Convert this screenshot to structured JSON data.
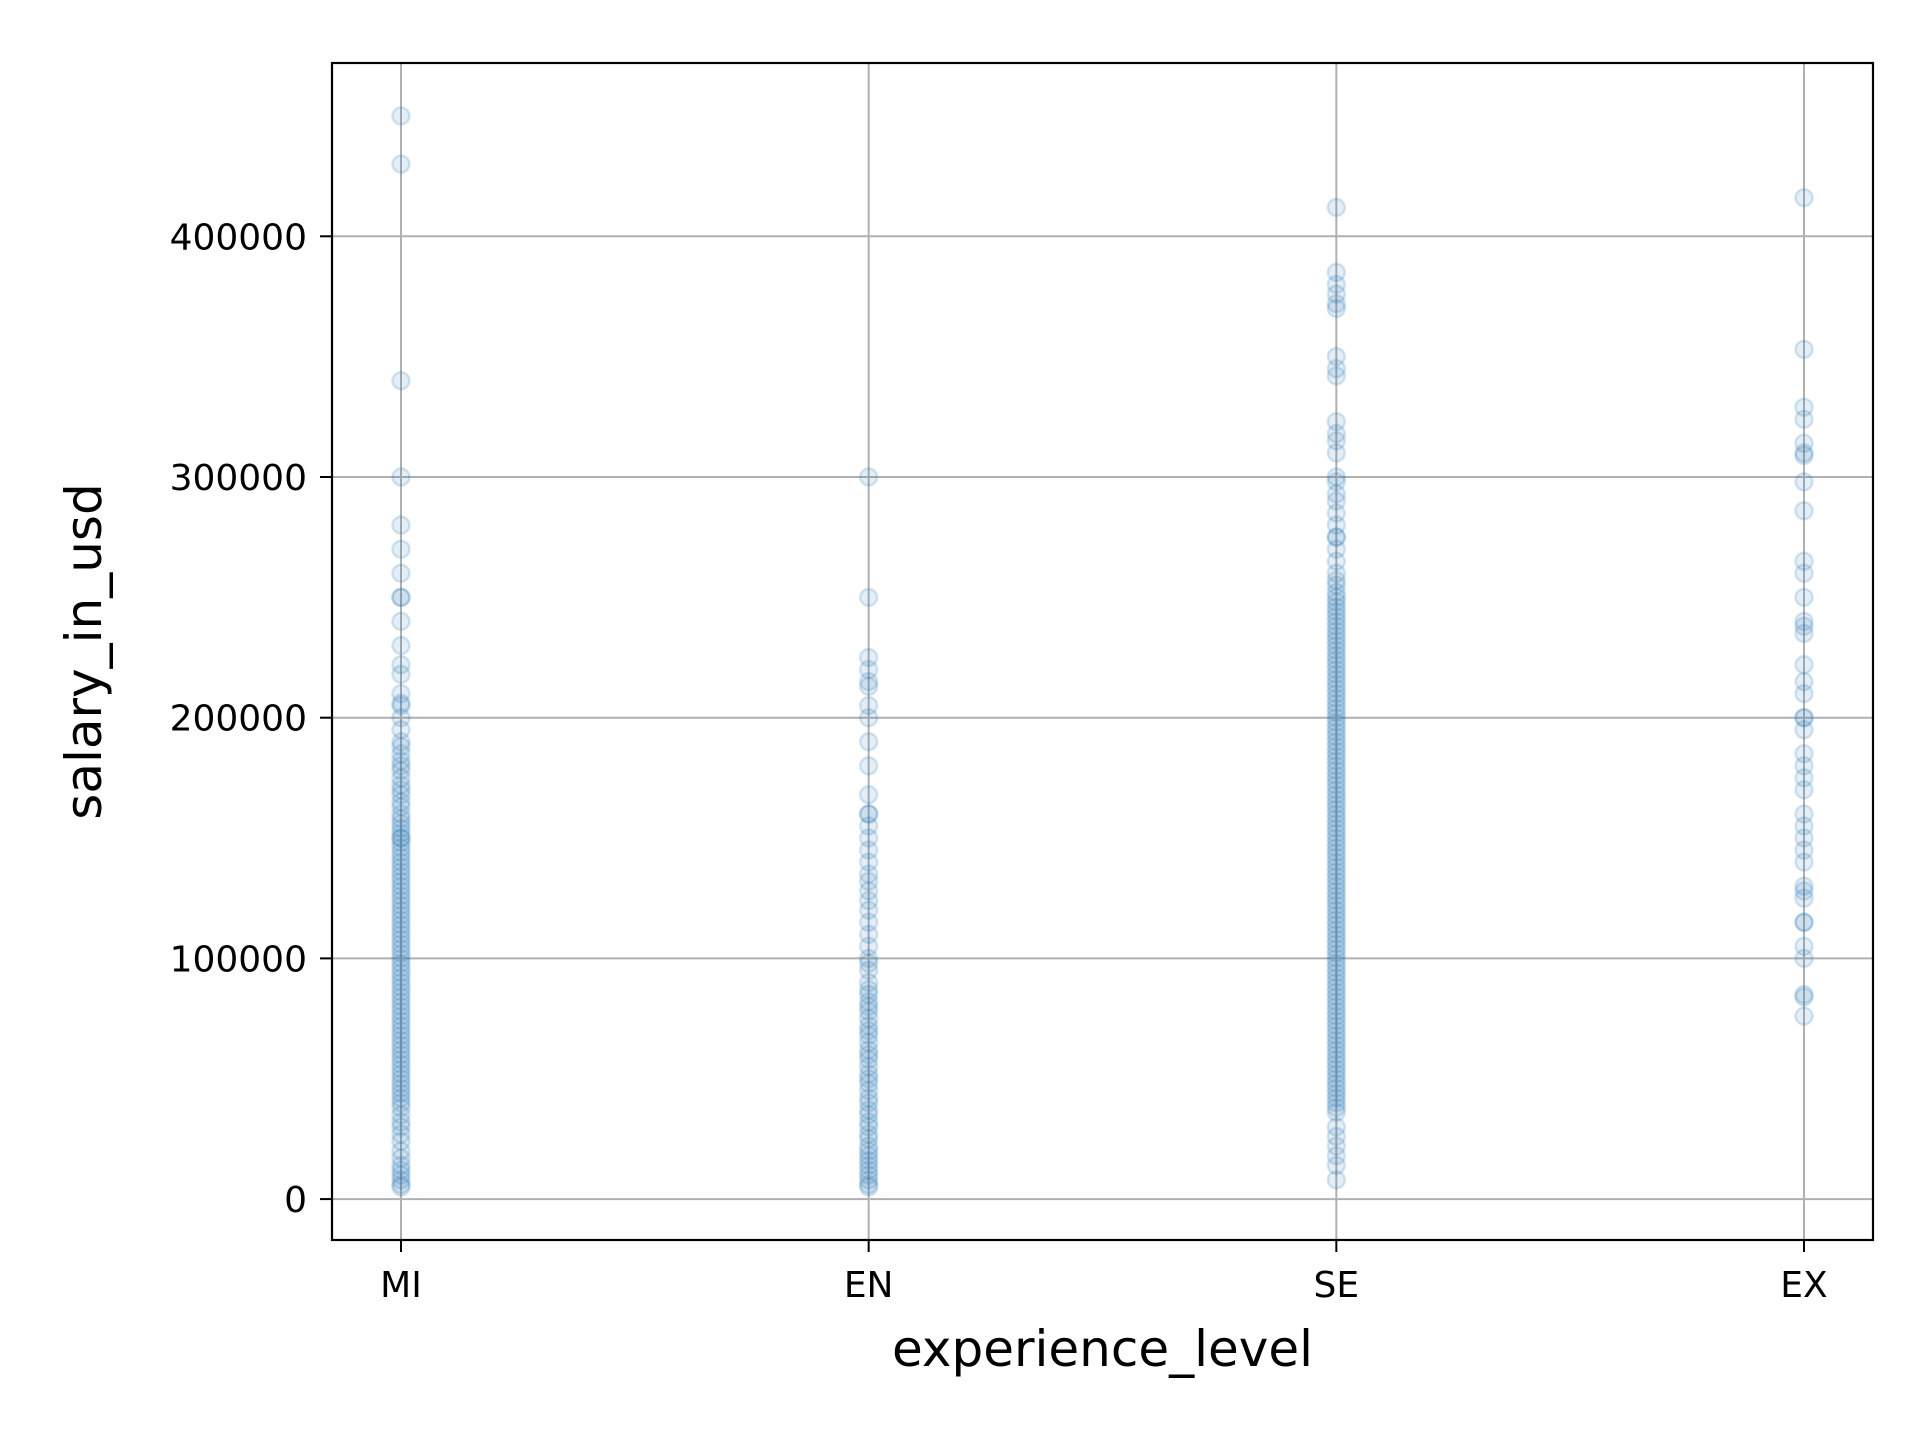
{
  "chart_data": {
    "type": "scatter",
    "xlabel": "experience_level",
    "ylabel": "salary_in_usd",
    "categories": [
      "MI",
      "EN",
      "SE",
      "EX"
    ],
    "ylim": [
      -17000,
      472000
    ],
    "yticks": [
      0,
      100000,
      200000,
      300000,
      400000
    ],
    "ytick_labels": [
      "0",
      "100000",
      "200000",
      "300000",
      "400000"
    ],
    "grid": true,
    "marker_color": "#1f77b4",
    "marker_alpha": 0.12,
    "series": [
      {
        "values": {
          "MI": [
            450000,
            430000,
            340000,
            300000,
            280000,
            270000,
            260000,
            250000,
            250000,
            240000,
            230000,
            222000,
            218000,
            210000,
            206000,
            205000,
            200000,
            195000,
            190000,
            188000,
            185000,
            182000,
            180000,
            178000,
            175000,
            172000,
            170000,
            168000,
            165000,
            163000,
            160000,
            158000,
            156000,
            154000,
            152000,
            150000,
            150000,
            148000,
            146000,
            144000,
            142000,
            140000,
            138000,
            136000,
            134000,
            132000,
            130000,
            128000,
            126000,
            124000,
            122000,
            120000,
            118000,
            116000,
            114000,
            112000,
            110000,
            108000,
            106000,
            104000,
            102000,
            100000,
            98000,
            96000,
            94000,
            92000,
            90000,
            88000,
            86000,
            84000,
            82000,
            80000,
            78000,
            76000,
            74000,
            72000,
            70000,
            68000,
            66000,
            64000,
            62000,
            60000,
            58000,
            56000,
            54000,
            52000,
            50000,
            48000,
            46000,
            44000,
            42000,
            40000,
            38000,
            35000,
            32000,
            30000,
            27000,
            24000,
            20000,
            17000,
            14000,
            12000,
            10000,
            8000,
            6000,
            5000
          ],
          "EN": [
            300000,
            250000,
            225000,
            220000,
            215000,
            213000,
            205000,
            200000,
            190000,
            180000,
            168000,
            160000,
            160000,
            155000,
            150000,
            145000,
            140000,
            135000,
            132000,
            128000,
            124000,
            120000,
            115000,
            110000,
            105000,
            100000,
            98000,
            95000,
            90000,
            87000,
            85000,
            82000,
            80000,
            78000,
            75000,
            72000,
            70000,
            68000,
            65000,
            62000,
            60000,
            58000,
            55000,
            52000,
            50000,
            48000,
            45000,
            42000,
            40000,
            37000,
            35000,
            32000,
            30000,
            27000,
            25000,
            22000,
            20000,
            18000,
            16000,
            14000,
            12000,
            10000,
            8000,
            6000,
            5000
          ],
          "SE": [
            412000,
            385000,
            380000,
            376000,
            372000,
            370000,
            350000,
            345000,
            342000,
            323000,
            318000,
            315000,
            310000,
            300000,
            298000,
            293000,
            290000,
            285000,
            280000,
            275000,
            275000,
            270000,
            265000,
            260000,
            257000,
            255000,
            252000,
            250000,
            248000,
            246000,
            244000,
            242000,
            240000,
            238000,
            236000,
            234000,
            232000,
            230000,
            228000,
            226000,
            224000,
            222000,
            220000,
            218000,
            216000,
            214000,
            212000,
            210000,
            208000,
            206000,
            204000,
            202000,
            200000,
            198000,
            196000,
            194000,
            192000,
            190000,
            188000,
            186000,
            184000,
            182000,
            180000,
            178000,
            176000,
            174000,
            172000,
            170000,
            168000,
            166000,
            164000,
            162000,
            160000,
            158000,
            156000,
            154000,
            152000,
            150000,
            148000,
            146000,
            144000,
            142000,
            140000,
            138000,
            136000,
            134000,
            132000,
            130000,
            128000,
            126000,
            124000,
            122000,
            120000,
            118000,
            116000,
            114000,
            112000,
            110000,
            108000,
            106000,
            104000,
            102000,
            100000,
            98000,
            96000,
            94000,
            92000,
            90000,
            88000,
            86000,
            84000,
            82000,
            80000,
            78000,
            76000,
            74000,
            72000,
            70000,
            68000,
            66000,
            64000,
            62000,
            60000,
            58000,
            56000,
            54000,
            52000,
            50000,
            48000,
            46000,
            44000,
            42000,
            40000,
            38000,
            36000,
            30000,
            26000,
            22000,
            18000,
            14000,
            8000
          ],
          "EX": [
            416000,
            353000,
            329000,
            324000,
            314000,
            310000,
            309000,
            298000,
            286000,
            265000,
            260000,
            250000,
            240000,
            238000,
            235000,
            222000,
            215000,
            210000,
            200000,
            200000,
            195000,
            185000,
            180000,
            175000,
            170000,
            160000,
            155000,
            150000,
            145000,
            140000,
            130000,
            128000,
            125000,
            115000,
            115000,
            105000,
            100000,
            85000,
            84000,
            76000
          ]
        }
      }
    ]
  }
}
